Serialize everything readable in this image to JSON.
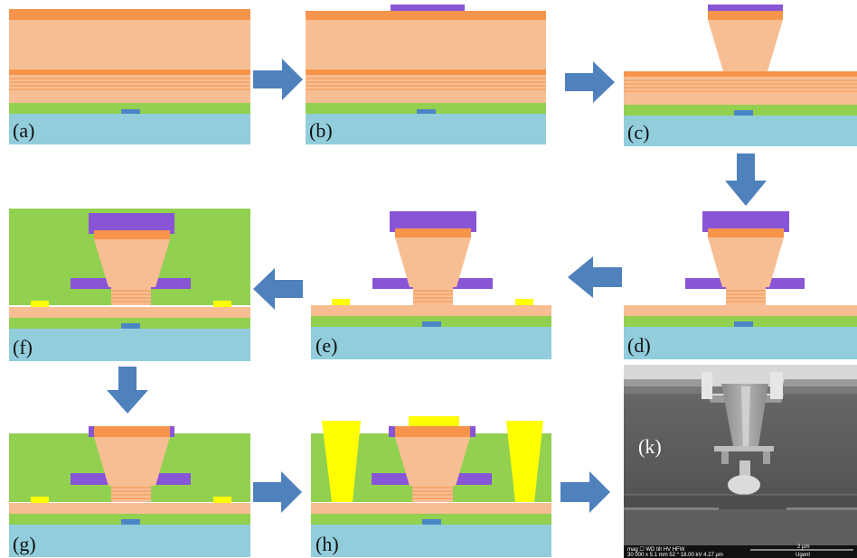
{
  "panels": {
    "a": {
      "label": "(a)"
    },
    "b": {
      "label": "(b)"
    },
    "c": {
      "label": "(c)"
    },
    "d": {
      "label": "(d)"
    },
    "e": {
      "label": "(e)"
    },
    "f": {
      "label": "(f)"
    },
    "g": {
      "label": "(g)"
    },
    "h": {
      "label": "(h)"
    },
    "k": {
      "label": "(k)"
    }
  },
  "sem": {
    "info_line1": "mag ☐  WD  tilt  HV  HFW",
    "info_line2": "30 000 x 5.1 mm 52 °  18.00 kV 4.27 µm",
    "scale_label": "2 µm",
    "brand": "Ugent"
  },
  "colors": {
    "peach": "#F8BE93",
    "orange": "#F5944A",
    "green": "#92D050",
    "cyan": "#92CDDC",
    "blue": "#4A86C5",
    "purple": "#8855D6",
    "yellow": "#FFFF00",
    "arrow": "#4F81BD"
  }
}
